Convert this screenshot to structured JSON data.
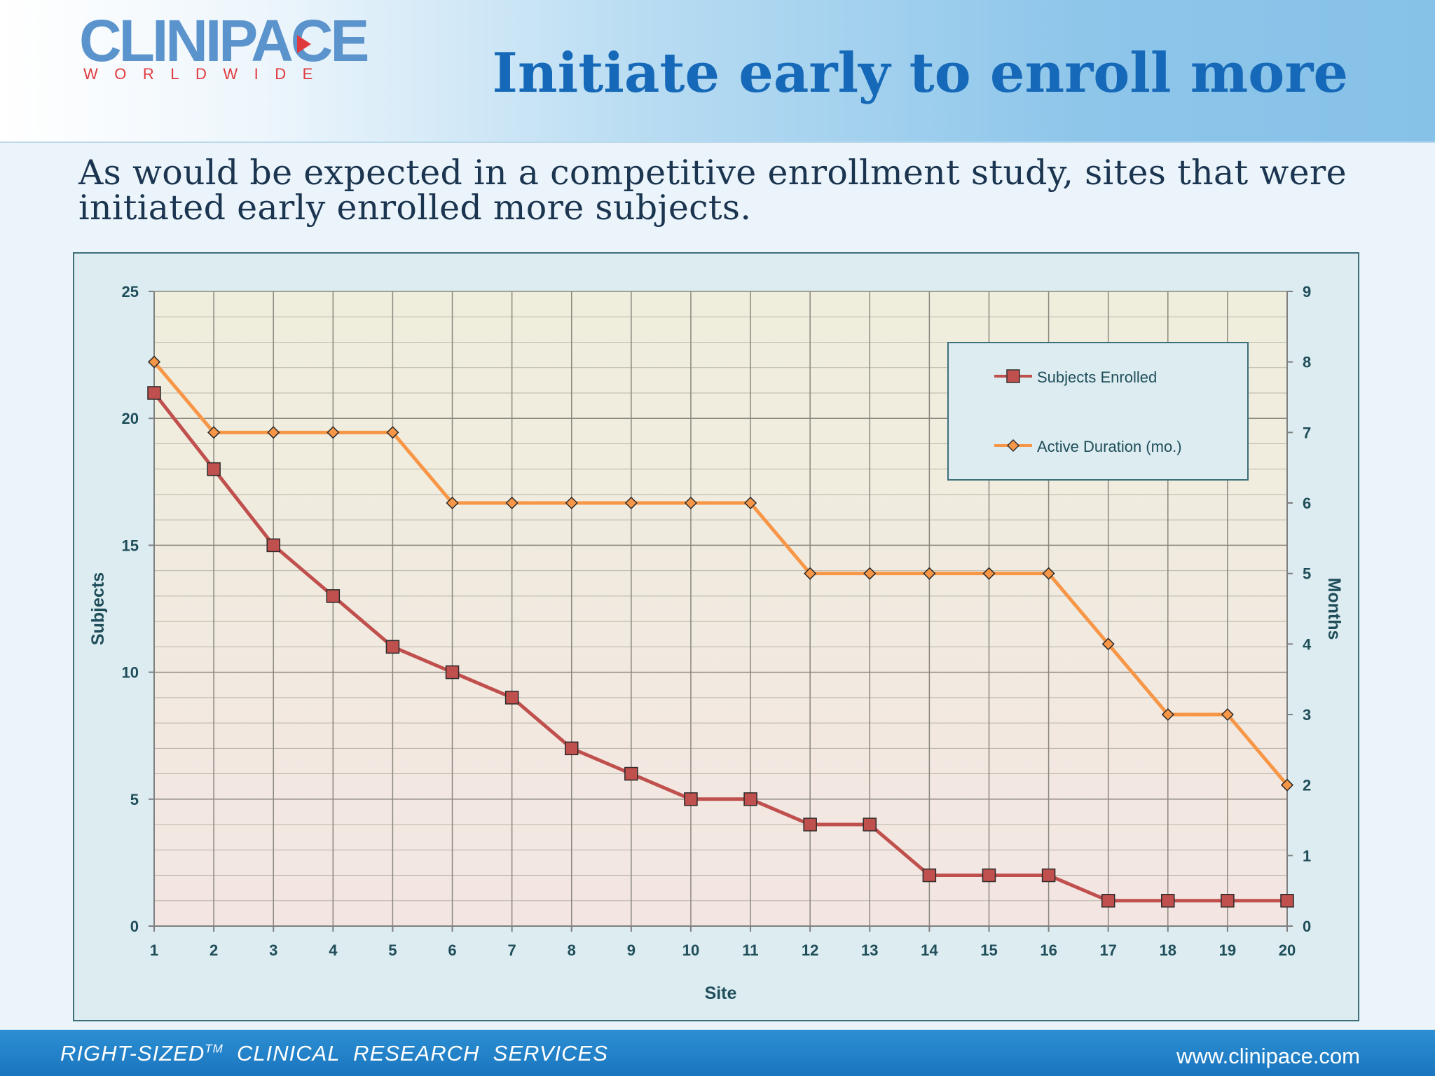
{
  "header": {
    "logo_main": "CLINIPACE",
    "logo_sub": "WORLDWIDE",
    "title": "Initiate early to enroll more"
  },
  "intro_text": "As would be expected in a competitive enrollment study, sites that were initiated early enrolled more subjects.",
  "footer": {
    "tagline_pre": "RIGHT-SIZED",
    "tagline_tm": "TM",
    "tagline_post": "  CLINICAL  RESEARCH  SERVICES",
    "url": "www.clinipace.com"
  },
  "colors": {
    "title": "#1669b8",
    "subjects_series": "#c0504d",
    "duration_series": "#f79646",
    "axis_text": "#1f4e5a"
  },
  "chart_data": {
    "type": "line",
    "xlabel": "Site",
    "ylabel": "Subjects",
    "y2label": "Months",
    "x": [
      1,
      2,
      3,
      4,
      5,
      6,
      7,
      8,
      9,
      10,
      11,
      12,
      13,
      14,
      15,
      16,
      17,
      18,
      19,
      20
    ],
    "ylim": [
      0,
      25
    ],
    "y_ticks": [
      0,
      5,
      10,
      15,
      20,
      25
    ],
    "y2lim": [
      0,
      9
    ],
    "y2_ticks": [
      0,
      1,
      2,
      3,
      4,
      5,
      6,
      7,
      8,
      9
    ],
    "grid": true,
    "legend_position": "top-right",
    "series": [
      {
        "name": "Subjects Enrolled",
        "axis": "left",
        "marker": "square",
        "color": "#c0504d",
        "values": [
          21,
          18,
          15,
          13,
          11,
          10,
          9,
          7,
          6,
          5,
          5,
          4,
          4,
          2,
          2,
          2,
          1,
          1,
          1,
          1
        ]
      },
      {
        "name": "Active Duration (mo.)",
        "axis": "right",
        "marker": "diamond",
        "color": "#f79646",
        "values": [
          8,
          7,
          7,
          7,
          7,
          6,
          6,
          6,
          6,
          6,
          6,
          5,
          5,
          5,
          5,
          5,
          4,
          3,
          3,
          2
        ]
      }
    ]
  }
}
